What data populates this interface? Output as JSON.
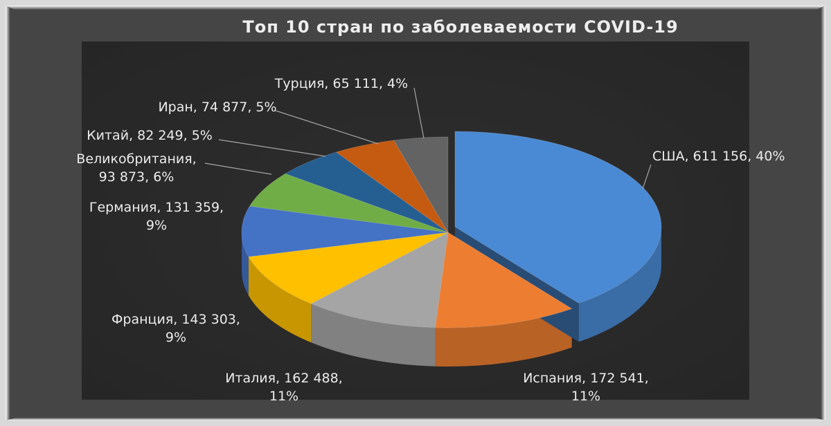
{
  "chart_data": {
    "type": "pie",
    "title": "Топ  10  стран  по  заболеваемости  COVID-19",
    "slices": [
      {
        "label": "США",
        "value": 611156,
        "pct": 40,
        "color": "#4a8ad4",
        "label_lines": [
          "США, 611 156, 40%"
        ]
      },
      {
        "label": "Испания",
        "value": 172541,
        "pct": 11,
        "color": "#ed7d31",
        "label_lines": [
          "Испания, 172 541,",
          "11%"
        ]
      },
      {
        "label": "Италия",
        "value": 162488,
        "pct": 11,
        "color": "#a5a5a5",
        "label_lines": [
          "Италия, 162 488,",
          "11%"
        ]
      },
      {
        "label": "Франция",
        "value": 143303,
        "pct": 9,
        "color": "#ffc000",
        "label_lines": [
          "Франция, 143 303,",
          "9%"
        ]
      },
      {
        "label": "Германия",
        "value": 131359,
        "pct": 9,
        "color": "#4472c4",
        "label_lines": [
          "Германия, 131 359,",
          "9%"
        ]
      },
      {
        "label": "Великобритания",
        "value": 93873,
        "pct": 6,
        "color": "#70ad47",
        "label_lines": [
          "Великобритания,",
          "93 873, 6%"
        ]
      },
      {
        "label": "Китай",
        "value": 82249,
        "pct": 5,
        "color": "#255e91",
        "label_lines": [
          "Китай, 82 249, 5%"
        ]
      },
      {
        "label": "Иран",
        "value": 74877,
        "pct": 5,
        "color": "#c55a11",
        "label_lines": [
          "Иран, 74 877, 5%"
        ]
      },
      {
        "label": "Турция",
        "value": 65111,
        "pct": 4,
        "color": "#636363",
        "label_lines": [
          "Турция, 65 111, 4%"
        ]
      }
    ]
  }
}
